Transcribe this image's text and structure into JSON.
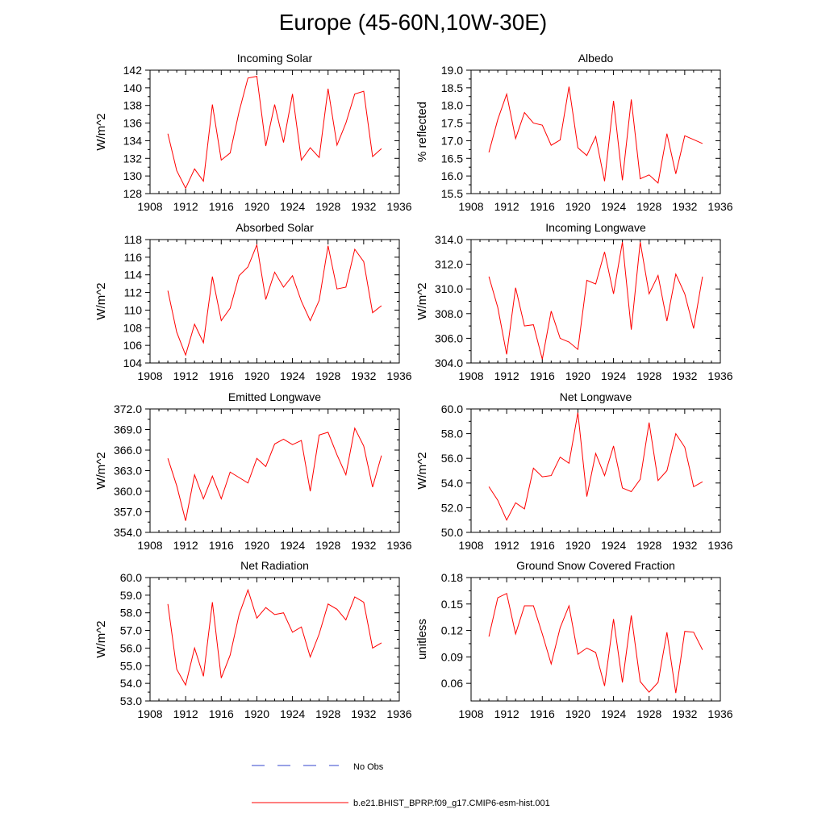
{
  "title": "Europe (45-60N,10W-30E)",
  "colors": {
    "model": "#ff0000",
    "obs": "#3344cc",
    "axis": "#000000"
  },
  "legend": {
    "items": [
      {
        "label": "No Obs",
        "style": "dashed",
        "color": "#3344cc"
      },
      {
        "label": "b.e21.BHIST_BPRP.f09_g17.CMIP6-esm-hist.001",
        "style": "solid",
        "color": "#ff0000"
      }
    ]
  },
  "chart_data": [
    {
      "type": "line",
      "title": "Incoming Solar",
      "xlabel": "",
      "ylabel": "W/m^2",
      "xlim": [
        1908,
        1936
      ],
      "ylim": [
        128,
        142
      ],
      "xticks": [
        1908,
        1912,
        1916,
        1920,
        1924,
        1928,
        1932,
        1936
      ],
      "yticks": [
        128,
        130,
        132,
        134,
        136,
        138,
        140,
        142
      ],
      "ydec": 0,
      "x": [
        1910,
        1911,
        1912,
        1913,
        1914,
        1915,
        1916,
        1917,
        1918,
        1919,
        1920,
        1921,
        1922,
        1923,
        1924,
        1925,
        1926,
        1927,
        1928,
        1929,
        1930,
        1931,
        1932,
        1933,
        1934
      ],
      "y": [
        134.8,
        130.6,
        128.6,
        130.8,
        129.4,
        138.1,
        131.8,
        132.6,
        137.3,
        141.1,
        141.3,
        133.4,
        138.1,
        133.8,
        139.3,
        131.8,
        133.2,
        132.1,
        139.9,
        133.5,
        136.0,
        139.3,
        139.6,
        132.2,
        133.1
      ]
    },
    {
      "type": "line",
      "title": "Albedo",
      "xlabel": "",
      "ylabel": "% reflected",
      "xlim": [
        1908,
        1936
      ],
      "ylim": [
        15.5,
        19.0
      ],
      "xticks": [
        1908,
        1912,
        1916,
        1920,
        1924,
        1928,
        1932,
        1936
      ],
      "yticks": [
        15.5,
        16.0,
        16.5,
        17.0,
        17.5,
        18.0,
        18.5,
        19.0
      ],
      "ydec": 1,
      "x": [
        1910,
        1911,
        1912,
        1913,
        1914,
        1915,
        1916,
        1917,
        1918,
        1919,
        1920,
        1921,
        1922,
        1923,
        1924,
        1925,
        1926,
        1927,
        1928,
        1929,
        1930,
        1931,
        1932,
        1933,
        1934
      ],
      "y": [
        16.67,
        17.6,
        18.32,
        17.06,
        17.8,
        17.5,
        17.44,
        16.87,
        17.02,
        18.53,
        16.8,
        16.58,
        17.12,
        15.85,
        18.13,
        15.88,
        18.17,
        15.92,
        16.03,
        15.8,
        17.2,
        16.06,
        17.14,
        17.03,
        16.92
      ]
    },
    {
      "type": "line",
      "title": "Absorbed Solar",
      "xlabel": "",
      "ylabel": "W/m^2",
      "xlim": [
        1908,
        1936
      ],
      "ylim": [
        104,
        118
      ],
      "xticks": [
        1908,
        1912,
        1916,
        1920,
        1924,
        1928,
        1932,
        1936
      ],
      "yticks": [
        104,
        106,
        108,
        110,
        112,
        114,
        116,
        118
      ],
      "ydec": 0,
      "x": [
        1910,
        1911,
        1912,
        1913,
        1914,
        1915,
        1916,
        1917,
        1918,
        1919,
        1920,
        1921,
        1922,
        1923,
        1924,
        1925,
        1926,
        1927,
        1928,
        1929,
        1930,
        1931,
        1932,
        1933,
        1934
      ],
      "y": [
        112.2,
        107.5,
        104.9,
        108.4,
        106.3,
        113.8,
        108.8,
        110.2,
        113.9,
        114.9,
        117.4,
        111.2,
        114.3,
        112.6,
        113.9,
        111.0,
        108.8,
        111.1,
        117.3,
        112.4,
        112.6,
        116.9,
        115.5,
        109.7,
        110.5
      ]
    },
    {
      "type": "line",
      "title": "Incoming Longwave",
      "xlabel": "",
      "ylabel": "W/m^2",
      "xlim": [
        1908,
        1936
      ],
      "ylim": [
        304.0,
        314.0
      ],
      "xticks": [
        1908,
        1912,
        1916,
        1920,
        1924,
        1928,
        1932,
        1936
      ],
      "yticks": [
        304.0,
        306.0,
        308.0,
        310.0,
        312.0,
        314.0
      ],
      "ydec": 1,
      "x": [
        1910,
        1911,
        1912,
        1913,
        1914,
        1915,
        1916,
        1917,
        1918,
        1919,
        1920,
        1921,
        1922,
        1923,
        1924,
        1925,
        1926,
        1927,
        1928,
        1929,
        1930,
        1931,
        1932,
        1933,
        1934
      ],
      "y": [
        311.0,
        308.5,
        304.7,
        310.1,
        307.0,
        307.1,
        304.3,
        308.2,
        306.0,
        305.7,
        305.1,
        310.7,
        310.4,
        313.0,
        309.6,
        313.8,
        306.7,
        313.8,
        309.6,
        311.1,
        307.4,
        311.2,
        309.6,
        306.8,
        311.0
      ]
    },
    {
      "type": "line",
      "title": "Emitted Longwave",
      "xlabel": "",
      "ylabel": "W/m^2",
      "xlim": [
        1908,
        1936
      ],
      "ylim": [
        354.0,
        372.0
      ],
      "xticks": [
        1908,
        1912,
        1916,
        1920,
        1924,
        1928,
        1932,
        1936
      ],
      "yticks": [
        354.0,
        357.0,
        360.0,
        363.0,
        366.0,
        369.0,
        372.0
      ],
      "ydec": 1,
      "x": [
        1910,
        1911,
        1912,
        1913,
        1914,
        1915,
        1916,
        1917,
        1918,
        1919,
        1920,
        1921,
        1922,
        1923,
        1924,
        1925,
        1926,
        1927,
        1928,
        1929,
        1930,
        1931,
        1932,
        1933,
        1934
      ],
      "y": [
        364.8,
        360.8,
        355.7,
        362.4,
        358.9,
        362.2,
        358.9,
        362.8,
        362.0,
        361.2,
        364.8,
        363.6,
        366.9,
        367.6,
        366.8,
        367.4,
        360.0,
        368.2,
        368.6,
        365.3,
        362.4,
        369.2,
        366.6,
        360.6,
        365.2
      ]
    },
    {
      "type": "line",
      "title": "Net Longwave",
      "xlabel": "",
      "ylabel": "W/m^2",
      "xlim": [
        1908,
        1936
      ],
      "ylim": [
        50.0,
        60.0
      ],
      "xticks": [
        1908,
        1912,
        1916,
        1920,
        1924,
        1928,
        1932,
        1936
      ],
      "yticks": [
        50.0,
        52.0,
        54.0,
        56.0,
        58.0,
        60.0
      ],
      "ydec": 1,
      "x": [
        1910,
        1911,
        1912,
        1913,
        1914,
        1915,
        1916,
        1917,
        1918,
        1919,
        1920,
        1921,
        1922,
        1923,
        1924,
        1925,
        1926,
        1927,
        1928,
        1929,
        1930,
        1931,
        1932,
        1933,
        1934
      ],
      "y": [
        53.7,
        52.6,
        51.0,
        52.4,
        51.9,
        55.2,
        54.5,
        54.6,
        56.1,
        55.6,
        59.7,
        52.9,
        56.4,
        54.6,
        57.0,
        53.6,
        53.3,
        54.3,
        58.9,
        54.2,
        55.0,
        58.0,
        56.9,
        53.7,
        54.1
      ]
    },
    {
      "type": "line",
      "title": "Net Radiation",
      "xlabel": "",
      "ylabel": "W/m^2",
      "xlim": [
        1908,
        1936
      ],
      "ylim": [
        53.0,
        60.0
      ],
      "xticks": [
        1908,
        1912,
        1916,
        1920,
        1924,
        1928,
        1932,
        1936
      ],
      "yticks": [
        53.0,
        54.0,
        55.0,
        56.0,
        57.0,
        58.0,
        59.0,
        60.0
      ],
      "ydec": 1,
      "x": [
        1910,
        1911,
        1912,
        1913,
        1914,
        1915,
        1916,
        1917,
        1918,
        1919,
        1920,
        1921,
        1922,
        1923,
        1924,
        1925,
        1926,
        1927,
        1928,
        1929,
        1930,
        1931,
        1932,
        1933,
        1934
      ],
      "y": [
        58.5,
        54.8,
        53.9,
        56.0,
        54.4,
        58.6,
        54.3,
        55.6,
        57.9,
        59.3,
        57.7,
        58.3,
        57.9,
        58.0,
        56.9,
        57.2,
        55.5,
        56.8,
        58.5,
        58.2,
        57.6,
        58.9,
        58.6,
        56.0,
        56.3
      ]
    },
    {
      "type": "line",
      "title": "Ground Snow Covered Fraction",
      "xlabel": "",
      "ylabel": "unitless",
      "xlim": [
        1908,
        1936
      ],
      "ylim": [
        0.04,
        0.18
      ],
      "xticks": [
        1908,
        1912,
        1916,
        1920,
        1924,
        1928,
        1932,
        1936
      ],
      "yticks": [
        0.06,
        0.09,
        0.12,
        0.15,
        0.18
      ],
      "ydec": 2,
      "x": [
        1910,
        1911,
        1912,
        1913,
        1914,
        1915,
        1916,
        1917,
        1918,
        1919,
        1920,
        1921,
        1922,
        1923,
        1924,
        1925,
        1926,
        1927,
        1928,
        1929,
        1930,
        1931,
        1932,
        1933,
        1934
      ],
      "y": [
        0.113,
        0.157,
        0.162,
        0.116,
        0.148,
        0.148,
        0.116,
        0.082,
        0.123,
        0.148,
        0.093,
        0.1,
        0.095,
        0.057,
        0.133,
        0.061,
        0.137,
        0.062,
        0.05,
        0.061,
        0.118,
        0.049,
        0.119,
        0.118,
        0.098
      ]
    }
  ]
}
